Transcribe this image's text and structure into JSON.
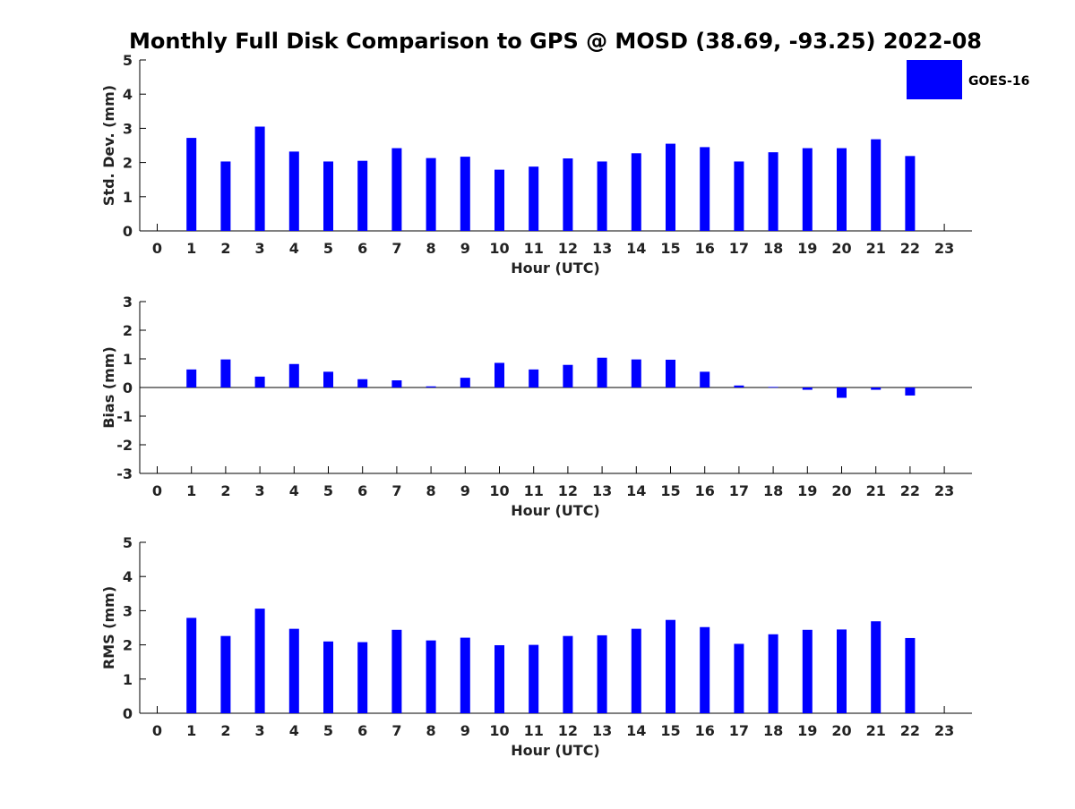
{
  "chart_data": {
    "type": "bar",
    "title": "Monthly Full Disk Comparison to GPS @ MOSD (38.69, -93.25) 2022-08",
    "colors": {
      "bar": "#0000ff",
      "axis": "#000000"
    },
    "legend": {
      "label": "GOES-16",
      "placement": "top-right"
    },
    "categories": [
      "0",
      "1",
      "2",
      "3",
      "4",
      "5",
      "6",
      "7",
      "8",
      "9",
      "10",
      "11",
      "12",
      "13",
      "14",
      "15",
      "16",
      "17",
      "18",
      "19",
      "20",
      "21",
      "22",
      "23"
    ],
    "panels": [
      {
        "id": "stddev",
        "ylabel": "Std. Dev. (mm)",
        "xlabel": "Hour (UTC)",
        "ylim": [
          0,
          5
        ],
        "yticks": [
          "0",
          "1",
          "2",
          "3",
          "4",
          "5"
        ],
        "values": [
          null,
          2.72,
          2.03,
          3.05,
          2.32,
          2.03,
          2.05,
          2.42,
          2.13,
          2.17,
          1.79,
          1.88,
          2.12,
          2.03,
          2.27,
          2.55,
          2.45,
          2.03,
          2.3,
          2.42,
          2.42,
          2.68,
          2.19,
          null
        ]
      },
      {
        "id": "bias",
        "ylabel": "Bias (mm)",
        "xlabel": "Hour (UTC)",
        "ylim": [
          -3,
          3
        ],
        "yticks": [
          "-3",
          "-2",
          "-1",
          "0",
          "1",
          "2",
          "3"
        ],
        "values": [
          null,
          0.63,
          0.98,
          0.38,
          0.82,
          0.55,
          0.29,
          0.25,
          0.04,
          0.34,
          0.86,
          0.63,
          0.79,
          1.04,
          0.98,
          0.97,
          0.55,
          0.07,
          0.02,
          -0.08,
          -0.36,
          -0.08,
          -0.28,
          null
        ]
      },
      {
        "id": "rms",
        "ylabel": "RMS (mm)",
        "xlabel": "Hour (UTC)",
        "ylim": [
          0,
          5
        ],
        "yticks": [
          "0",
          "1",
          "2",
          "3",
          "4",
          "5"
        ],
        "values": [
          null,
          2.79,
          2.26,
          3.06,
          2.47,
          2.1,
          2.08,
          2.44,
          2.13,
          2.21,
          1.99,
          2.0,
          2.26,
          2.28,
          2.47,
          2.73,
          2.52,
          2.03,
          2.31,
          2.44,
          2.45,
          2.69,
          2.2,
          null
        ]
      }
    ]
  }
}
